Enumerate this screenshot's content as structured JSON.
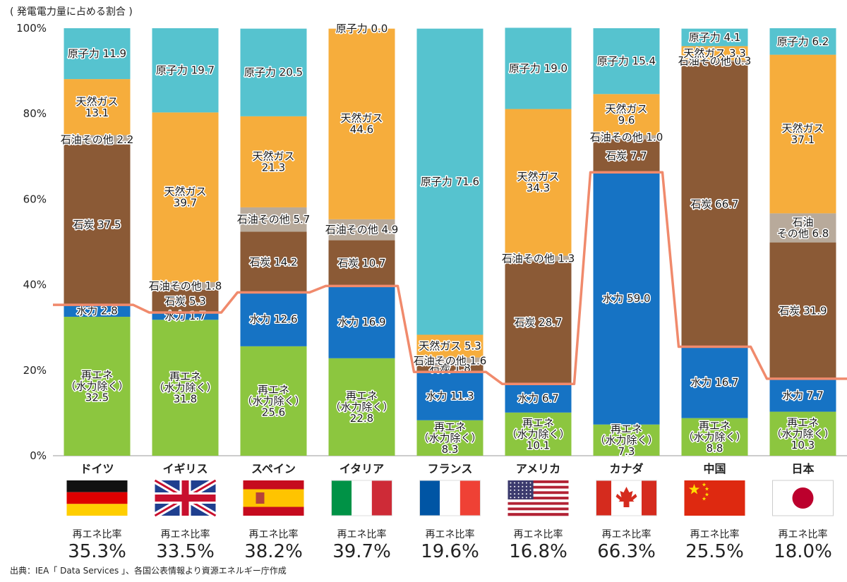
{
  "title": "( 発電電力量に占める割合 )",
  "source": "出典：IEA「 Data Services 」、各国公表情報より資源エネルギー庁作成",
  "colors": {
    "renewable": "#8cc63f",
    "hydro": "#1673c4",
    "coal": "#8b5a36",
    "oil": "#b8aa9b",
    "gas": "#f6ad3c",
    "nuclear": "#56c3cf",
    "line": "#f08a6c",
    "highlight": "#e60012"
  },
  "chart_data": {
    "type": "bar",
    "stacked": true,
    "ylim": [
      0,
      100
    ],
    "yticks": [
      "0%",
      "20%",
      "40%",
      "60%",
      "80%",
      "100%"
    ],
    "categories": [
      "ドイツ",
      "イギリス",
      "スペイン",
      "イタリア",
      "フランス",
      "アメリカ",
      "カナダ",
      "中国",
      "日本"
    ],
    "flags": [
      "germany-flag",
      "uk-flag",
      "spain-flag",
      "italy-flag",
      "france-flag",
      "usa-flag",
      "canada-flag",
      "china-flag",
      "japan-flag"
    ],
    "highlight_category": "日本",
    "series": [
      {
        "key": "renewable",
        "values": [
          32.5,
          31.8,
          25.6,
          22.8,
          8.3,
          10.1,
          7.3,
          8.8,
          10.3
        ],
        "labels": [
          "再エネ\n（水力除く）\n32.5",
          "再エネ\n（水力除く）\n31.8",
          "再エネ\n（水力除く）\n25.6",
          "再エネ\n（水力除く）\n22.8",
          "再エネ\n（水力除く）\n8.3",
          "再エネ\n（水力除く）\n10.1",
          "再エネ\n（水力除く）\n7.3",
          "再エネ\n（水力除く）\n8.8",
          "再エネ\n（水力除く）\n10.3"
        ]
      },
      {
        "key": "hydro",
        "values": [
          2.8,
          1.7,
          12.6,
          16.9,
          11.3,
          6.7,
          59.0,
          16.7,
          7.7
        ],
        "labels": [
          "水力 2.8",
          "水力 1.7",
          "水力 12.6",
          "水力 16.9",
          "水力 11.3",
          "水力 6.7",
          "水力 59.0",
          "水力 16.7",
          "水力 7.7"
        ]
      },
      {
        "key": "coal",
        "values": [
          37.5,
          5.3,
          14.2,
          10.7,
          1.8,
          28.7,
          7.7,
          66.7,
          31.9
        ],
        "labels": [
          "石炭 37.5",
          "石炭 5.3",
          "石炭 14.2",
          "石炭 10.7",
          "石炭 1.8",
          "石炭 28.7",
          "石炭 7.7",
          "石炭 66.7",
          "石炭 31.9"
        ]
      },
      {
        "key": "oil",
        "values": [
          2.2,
          1.8,
          5.7,
          4.9,
          1.6,
          1.3,
          1.0,
          0.3,
          6.8
        ],
        "labels": [
          "石油その他 2.2",
          "石油その他 1.8",
          "石油その他 5.7",
          "石油その他 4.9",
          "石油その他 1.6",
          "石油その他 1.3",
          "石油その他 1.0",
          "石油その他 0.3",
          "石油\nその他 6.8"
        ]
      },
      {
        "key": "gas",
        "values": [
          13.1,
          39.7,
          21.3,
          44.6,
          5.3,
          34.3,
          9.6,
          3.3,
          37.1
        ],
        "labels": [
          "天然ガス\n13.1",
          "天然ガス\n39.7",
          "天然ガス\n21.3",
          "天然ガス\n44.6",
          "天然ガス 5.3",
          "天然ガス\n34.3",
          "天然ガス\n9.6",
          "天然ガス 3.3",
          "天然ガス\n37.1"
        ]
      },
      {
        "key": "nuclear",
        "values": [
          11.9,
          19.7,
          20.5,
          0.0,
          71.6,
          19.0,
          15.4,
          4.1,
          6.2
        ],
        "labels": [
          "原子力 11.9",
          "原子力 19.7",
          "原子力 20.5",
          "原子力 0.0",
          "原子力 71.6",
          "原子力 19.0",
          "原子力 15.4",
          "原子力 4.1",
          "原子力 6.2"
        ]
      }
    ],
    "renewable_ratio_label": "再エネ比率",
    "renewable_ratio": [
      35.3,
      33.5,
      38.2,
      39.7,
      19.6,
      16.8,
      66.3,
      25.5,
      18.0
    ],
    "renewable_ratio_text": [
      "35.3%",
      "33.5%",
      "38.2%",
      "39.7%",
      "19.6%",
      "16.8%",
      "66.3%",
      "25.5%",
      "18.0%"
    ]
  }
}
